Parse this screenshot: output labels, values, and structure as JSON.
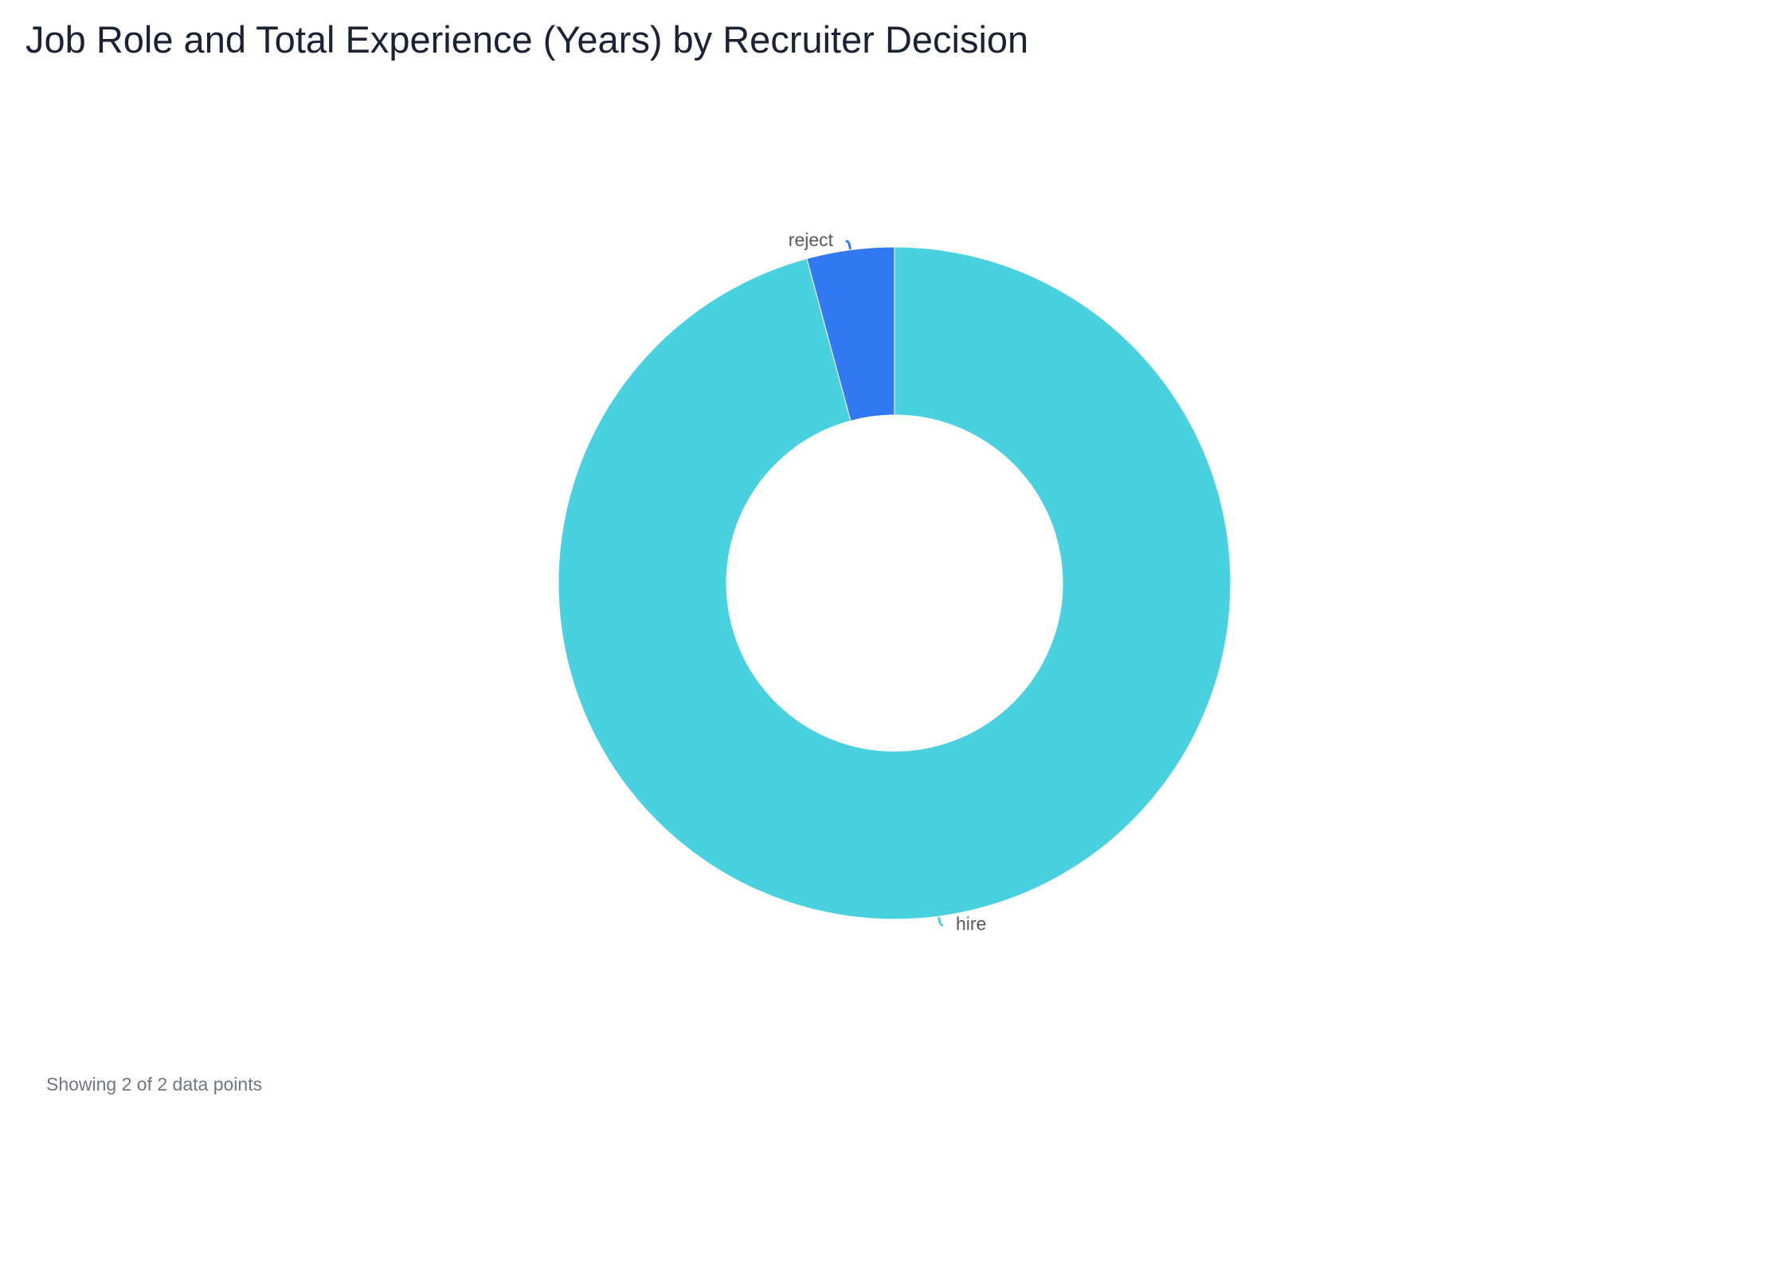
{
  "chart_data": {
    "type": "pie",
    "variant": "donut",
    "title": "Job Role and Total Experience (Years) by Recruiter Decision",
    "categories": [
      "hire",
      "reject"
    ],
    "values": [
      95.8,
      4.2
    ],
    "colors": [
      "#49d1e0",
      "#3278f0"
    ],
    "legend": "none"
  },
  "footer": {
    "note": "Showing 2 of 2 data points"
  }
}
